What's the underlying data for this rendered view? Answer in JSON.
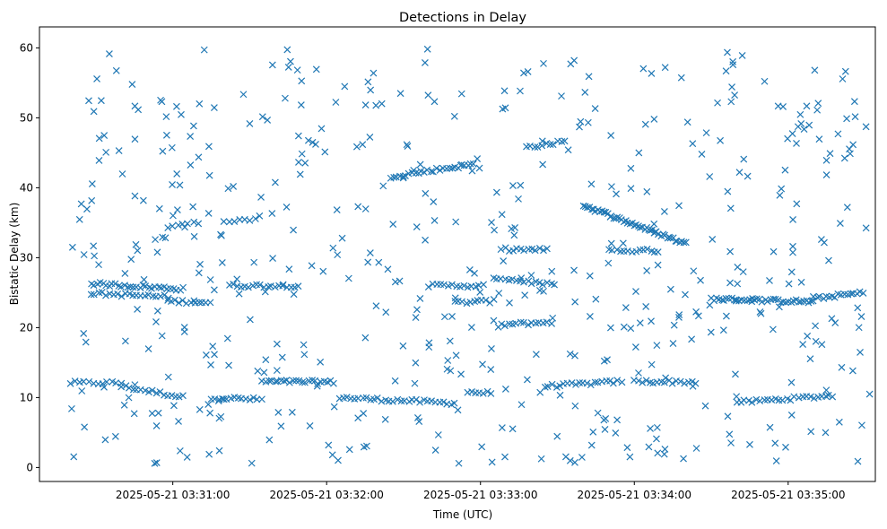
{
  "chart_data": {
    "type": "scatter",
    "title": "Detections in Delay",
    "xlabel": "Time (UTC)",
    "ylabel": "Bistatic Delay (km)",
    "marker": "x",
    "color": "#1f77b4",
    "grid": false,
    "legend": "none",
    "x_axis": {
      "type": "time",
      "range": [
        "2025-05-21 03:30:08",
        "2025-05-21 03:35:34"
      ],
      "ticks": [
        "2025-05-21 03:31:00",
        "2025-05-21 03:32:00",
        "2025-05-21 03:33:00",
        "2025-05-21 03:34:00",
        "2025-05-21 03:35:00"
      ]
    },
    "y_axis": {
      "range": [
        -2,
        63
      ],
      "ticks": [
        0,
        10,
        20,
        30,
        40,
        50,
        60
      ]
    },
    "track_segments": [
      {
        "t0": "2025-05-21 03:30:20",
        "t1": "2025-05-21 03:30:40",
        "d0": 12.1,
        "d1": 12.1,
        "step_s": 1.8
      },
      {
        "t0": "2025-05-21 03:30:40",
        "t1": "2025-05-21 03:31:05",
        "d0": 11.6,
        "d1": 10.0,
        "step_s": 1.5
      },
      {
        "t0": "2025-05-21 03:31:15",
        "t1": "2025-05-21 03:31:35",
        "d0": 10.0,
        "d1": 9.7,
        "step_s": 1.5
      },
      {
        "t0": "2025-05-21 03:31:35",
        "t1": "2025-05-21 03:32:03",
        "d0": 12.3,
        "d1": 12.2,
        "step_s": 1.2
      },
      {
        "t0": "2025-05-21 03:32:05",
        "t1": "2025-05-21 03:32:50",
        "d0": 10.0,
        "d1": 9.2,
        "step_s": 1.5
      },
      {
        "t0": "2025-05-21 03:32:55",
        "t1": "2025-05-21 03:33:05",
        "d0": 10.8,
        "d1": 10.6,
        "step_s": 1.5
      },
      {
        "t0": "2025-05-21 03:33:25",
        "t1": "2025-05-21 03:33:55",
        "d0": 11.6,
        "d1": 12.3,
        "step_s": 1.5
      },
      {
        "t0": "2025-05-21 03:34:00",
        "t1": "2025-05-21 03:34:25",
        "d0": 12.3,
        "d1": 12.2,
        "step_s": 1.5
      },
      {
        "t0": "2025-05-21 03:34:40",
        "t1": "2025-05-21 03:35:18",
        "d0": 9.3,
        "d1": 10.3,
        "step_s": 1.5
      },
      {
        "t0": "2025-05-21 03:30:28",
        "t1": "2025-05-21 03:31:05",
        "d0": 26.3,
        "d1": 25.5,
        "step_s": 1.2
      },
      {
        "t0": "2025-05-21 03:30:28",
        "t1": "2025-05-21 03:30:58",
        "d0": 24.9,
        "d1": 24.4,
        "step_s": 1.5
      },
      {
        "t0": "2025-05-21 03:30:58",
        "t1": "2025-05-21 03:31:15",
        "d0": 23.8,
        "d1": 23.6,
        "step_s": 1.5
      },
      {
        "t0": "2025-05-21 03:31:22",
        "t1": "2025-05-21 03:31:50",
        "d0": 26.0,
        "d1": 26.0,
        "step_s": 1.5
      },
      {
        "t0": "2025-05-21 03:32:40",
        "t1": "2025-05-21 03:33:02",
        "d0": 26.0,
        "d1": 26.0,
        "step_s": 1.5
      },
      {
        "t0": "2025-05-21 03:32:50",
        "t1": "2025-05-21 03:33:06",
        "d0": 23.6,
        "d1": 23.8,
        "step_s": 1.5
      },
      {
        "t0": "2025-05-21 03:33:05",
        "t1": "2025-05-21 03:33:30",
        "d0": 27.2,
        "d1": 26.0,
        "step_s": 1.5
      },
      {
        "t0": "2025-05-21 03:33:08",
        "t1": "2025-05-21 03:33:26",
        "d0": 31.2,
        "d1": 31.1,
        "step_s": 1.5
      },
      {
        "t0": "2025-05-21 03:33:08",
        "t1": "2025-05-21 03:33:28",
        "d0": 20.4,
        "d1": 20.8,
        "step_s": 1.5
      },
      {
        "t0": "2025-05-21 03:33:50",
        "t1": "2025-05-21 03:34:10",
        "d0": 31.0,
        "d1": 31.0,
        "step_s": 1.5
      },
      {
        "t0": "2025-05-21 03:33:40",
        "t1": "2025-05-21 03:34:20",
        "d0": 37.5,
        "d1": 32.0,
        "step_s": 0.8
      },
      {
        "t0": "2025-05-21 03:32:25",
        "t1": "2025-05-21 03:32:58",
        "d0": 41.6,
        "d1": 43.4,
        "step_s": 1.2
      },
      {
        "t0": "2025-05-21 03:33:18",
        "t1": "2025-05-21 03:33:33",
        "d0": 45.8,
        "d1": 46.6,
        "step_s": 1.5
      },
      {
        "t0": "2025-05-21 03:34:30",
        "t1": "2025-05-21 03:35:10",
        "d0": 24.1,
        "d1": 23.7,
        "step_s": 1.0
      },
      {
        "t0": "2025-05-21 03:35:10",
        "t1": "2025-05-21 03:35:30",
        "d0": 24.2,
        "d1": 25.0,
        "step_s": 1.2
      },
      {
        "t0": "2025-05-21 03:30:58",
        "t1": "2025-05-21 03:31:10",
        "d0": 34.5,
        "d1": 35.0,
        "step_s": 2.0
      },
      {
        "t0": "2025-05-21 03:31:20",
        "t1": "2025-05-21 03:31:35",
        "d0": 35.0,
        "d1": 35.8,
        "step_s": 2.0
      }
    ],
    "random_points": {
      "count": 520,
      "t0": "2025-05-21 03:30:20",
      "t1": "2025-05-21 03:35:32",
      "d_min": 0.5,
      "d_max": 60
    }
  }
}
